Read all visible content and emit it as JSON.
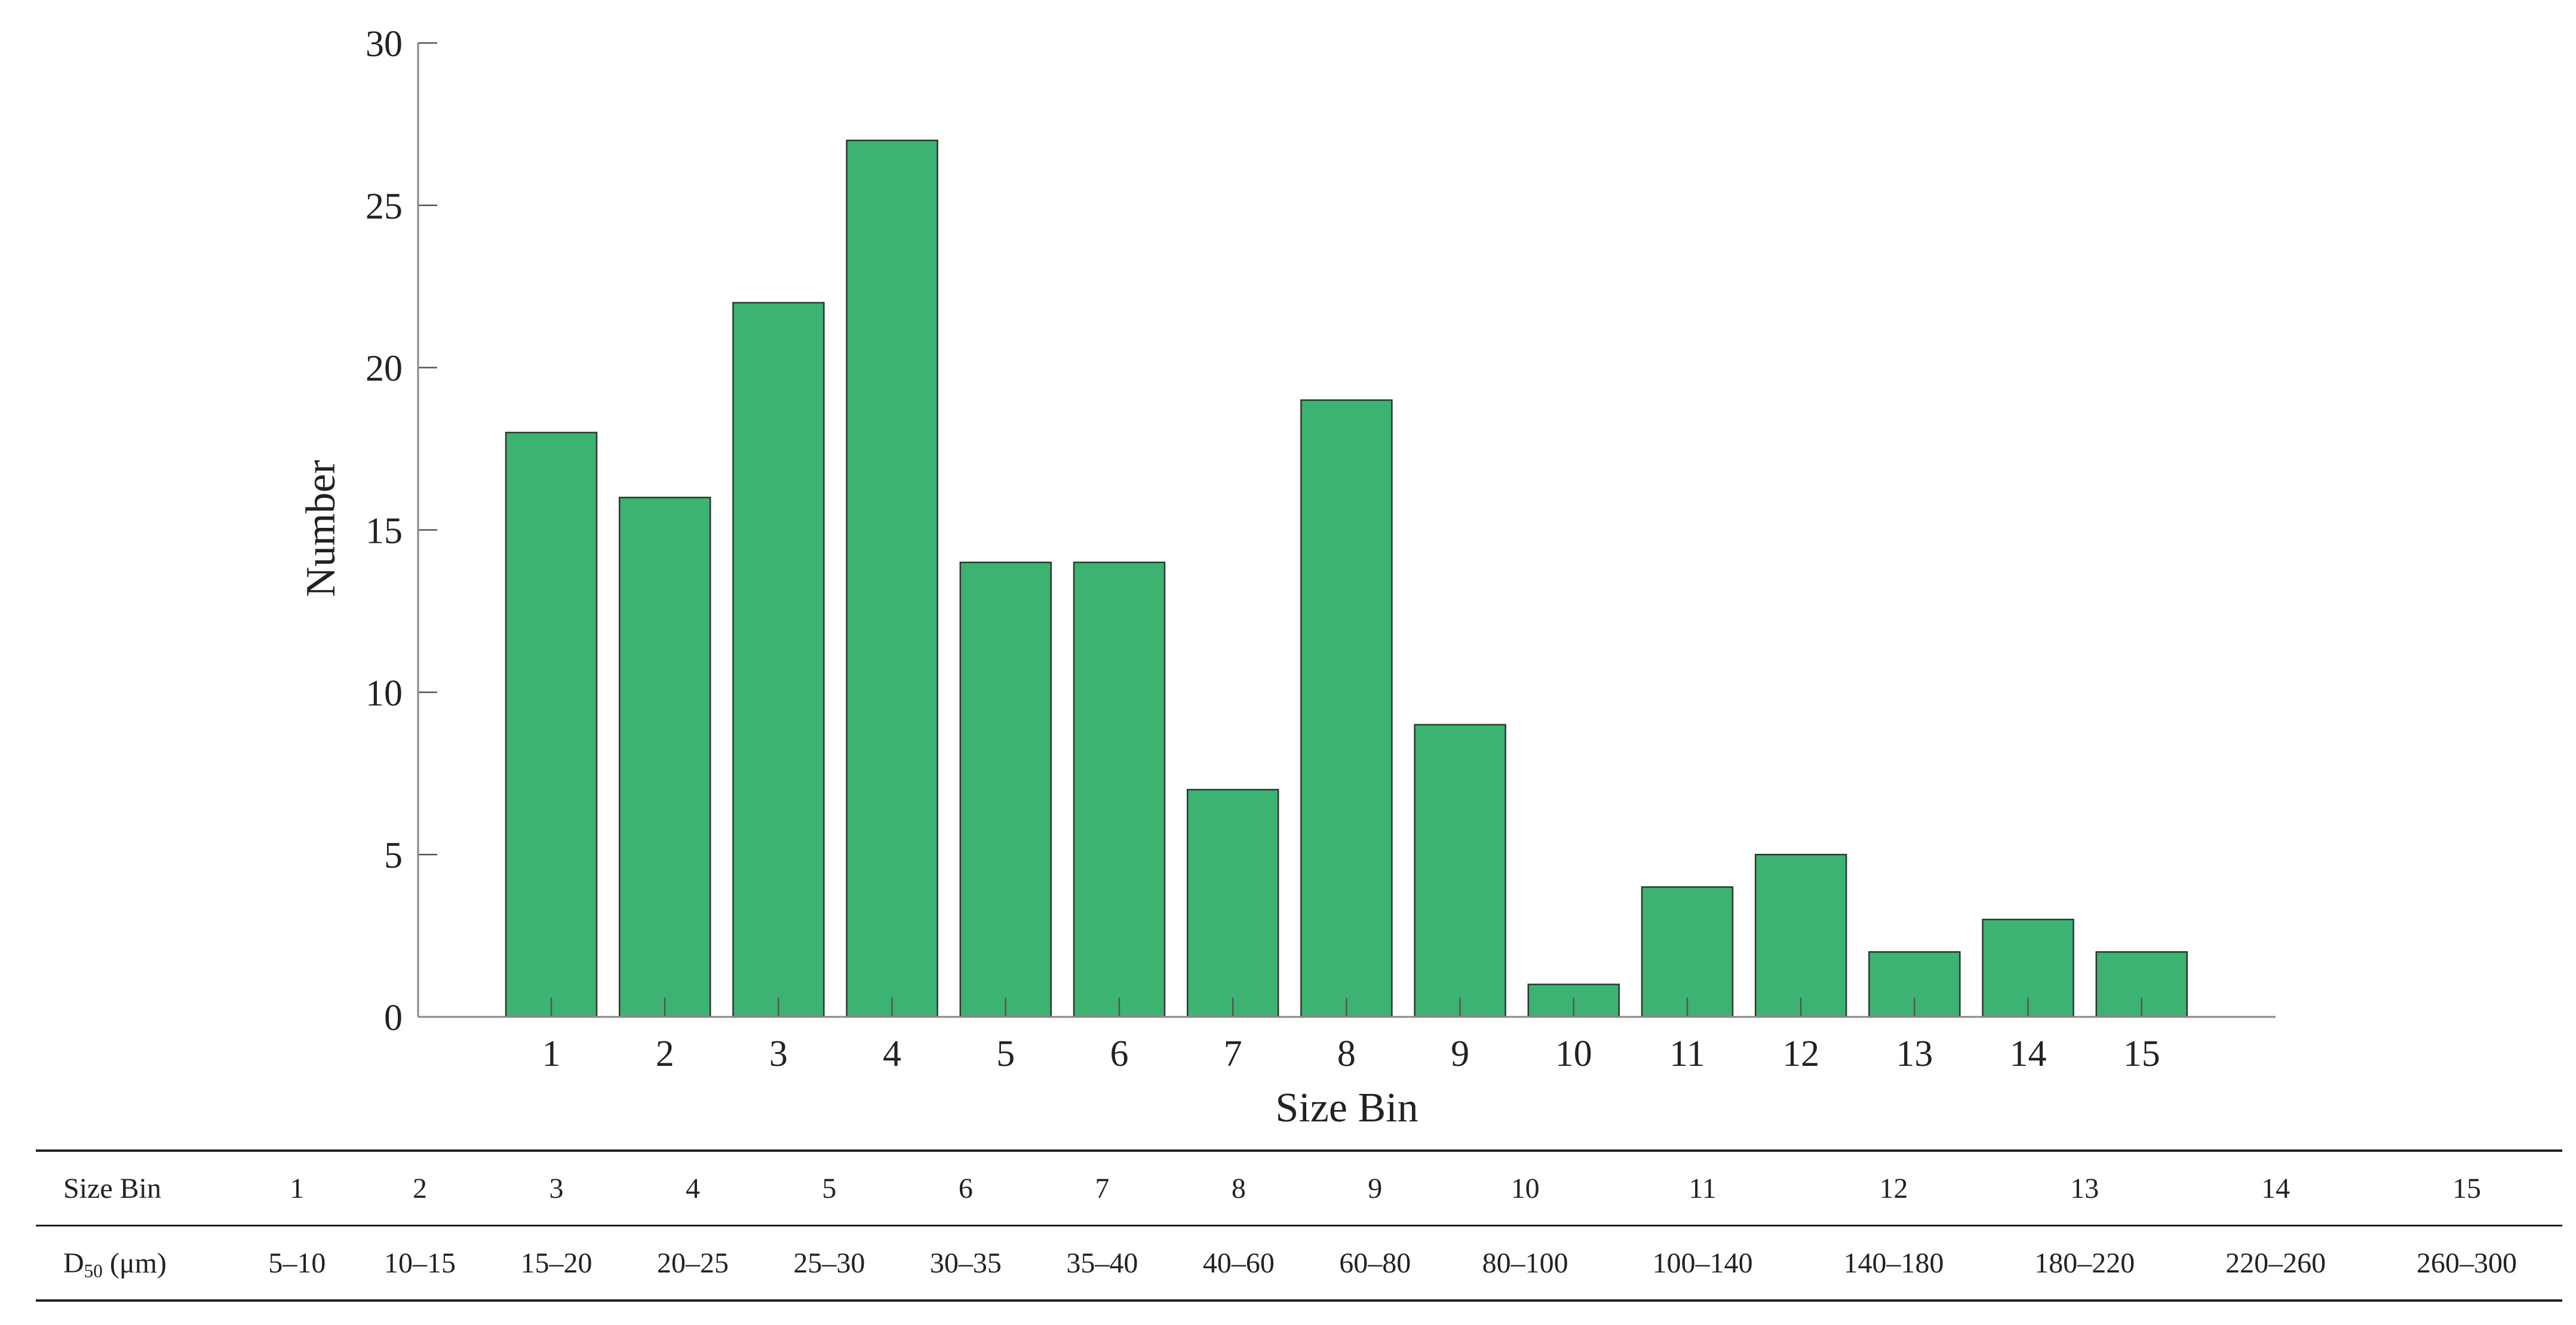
{
  "chart_data": {
    "type": "bar",
    "xlabel": "Size Bin",
    "ylabel": "Number",
    "categories": [
      "1",
      "2",
      "3",
      "4",
      "5",
      "6",
      "7",
      "8",
      "9",
      "10",
      "11",
      "12",
      "13",
      "14",
      "15"
    ],
    "values": [
      18,
      16,
      22,
      27,
      14,
      14,
      7,
      19,
      9,
      1,
      4,
      5,
      2,
      3,
      2
    ],
    "ylim": [
      0,
      30
    ],
    "yticks": [
      "0",
      "5",
      "10",
      "15",
      "20",
      "25",
      "30"
    ],
    "bar_color": "#3cb371",
    "grid": false,
    "legend": "none"
  },
  "table": {
    "row1_header": "Size Bin",
    "row1_values": [
      "1",
      "2",
      "3",
      "4",
      "5",
      "6",
      "7",
      "8",
      "9",
      "10",
      "11",
      "12",
      "13",
      "14",
      "15"
    ],
    "row2_header_main": "D",
    "row2_header_sub": "50",
    "row2_header_unit": " (μm)",
    "row2_values": [
      "5–10",
      "10–15",
      "15–20",
      "20–25",
      "25–30",
      "30–35",
      "35–40",
      "40–60",
      "60–80",
      "80–100",
      "100–140",
      "140–180",
      "180–220",
      "220–260",
      "260–300"
    ]
  }
}
